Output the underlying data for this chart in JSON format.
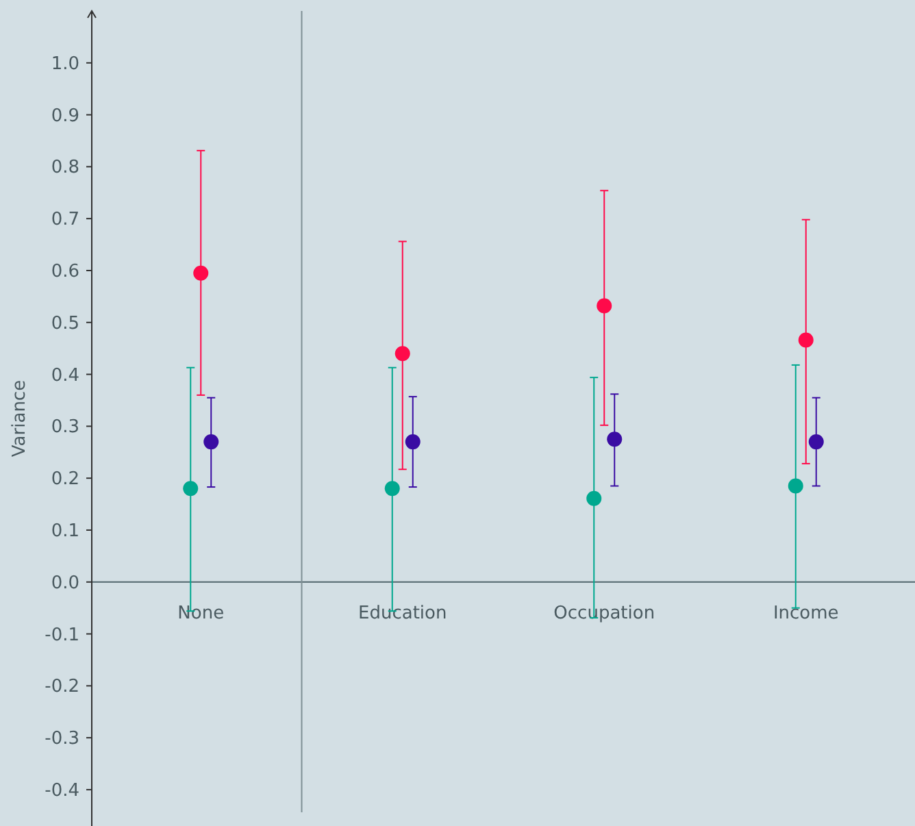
{
  "chart_data": {
    "type": "scatter",
    "ylabel": "Variance",
    "categories": [
      "None",
      "Education",
      "Occupation",
      "Income"
    ],
    "series": [
      {
        "color": "#00a88f",
        "values": [
          0.18,
          0.18,
          0.161,
          0.185
        ],
        "errors": [
          [
            -0.056,
            0.413
          ],
          [
            -0.056,
            0.413
          ],
          [
            -0.069,
            0.394
          ],
          [
            -0.05,
            0.418
          ]
        ]
      },
      {
        "color": "#ff0a4a",
        "values": [
          0.595,
          0.44,
          0.532,
          0.466
        ],
        "errors": [
          [
            0.36,
            0.831
          ],
          [
            0.217,
            0.656
          ],
          [
            0.302,
            0.754
          ],
          [
            0.228,
            0.698
          ]
        ]
      },
      {
        "color": "#3a0ca3",
        "values": [
          0.27,
          0.27,
          0.275,
          0.27
        ],
        "errors": [
          [
            0.183,
            0.355
          ],
          [
            0.183,
            0.357
          ],
          [
            0.185,
            0.362
          ],
          [
            0.185,
            0.355
          ]
        ]
      }
    ],
    "ylim": [
      -0.47,
      1.1
    ],
    "yticks": [
      {
        "value": -0.4,
        "label": "-0.4"
      },
      {
        "value": -0.3,
        "label": "-0.3"
      },
      {
        "value": -0.2,
        "label": "-0.2"
      },
      {
        "value": -0.1,
        "label": "-0.1"
      },
      {
        "value": 0,
        "label": "0.0"
      },
      {
        "value": 0.1,
        "label": "0.1"
      },
      {
        "value": 0.2,
        "label": "0.2"
      },
      {
        "value": 0.3,
        "label": "0.3"
      },
      {
        "value": 0.4,
        "label": "0.4"
      },
      {
        "value": 0.5,
        "label": "0.5"
      },
      {
        "value": 0.6,
        "label": "0.6"
      },
      {
        "value": 0.7,
        "label": "0.7"
      },
      {
        "value": 0.8,
        "label": "0.8"
      },
      {
        "value": 0.9,
        "label": "0.9"
      },
      {
        "value": 1,
        "label": "1.0"
      }
    ],
    "marker": "circle",
    "grid": false
  }
}
